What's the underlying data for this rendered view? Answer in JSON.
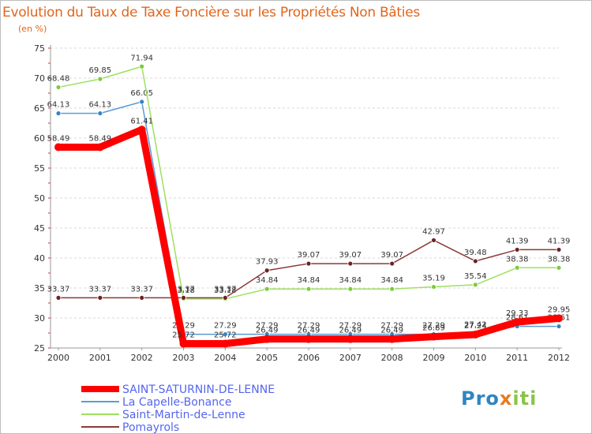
{
  "chart_data": {
    "type": "line",
    "title": "Evolution du Taux de Taxe Foncière sur les Propriétés Non Bâties",
    "ylabel": "(en %)",
    "xlabel": "",
    "ylim": [
      25,
      75
    ],
    "yticks": [
      25,
      30,
      35,
      40,
      45,
      50,
      55,
      60,
      65,
      70,
      75
    ],
    "categories": [
      "2000",
      "2001",
      "2002",
      "2003",
      "2004",
      "2005",
      "2006",
      "2007",
      "2008",
      "2009",
      "2010",
      "2011",
      "2012"
    ],
    "series": [
      {
        "name": "SAINT-SATURNIN-DE-LENNE",
        "color": "#ff0000",
        "marker": "#ff0000",
        "bold": true,
        "values": [
          58.49,
          58.49,
          61.41,
          25.72,
          25.72,
          26.49,
          26.49,
          26.49,
          26.49,
          26.89,
          27.24,
          29.33,
          29.95
        ],
        "labels": [
          "58.49",
          "58.49",
          "61.41",
          "25.72",
          "25.72",
          "26.49",
          "26.49",
          "26.49",
          "26.49",
          "26.89",
          "27.24",
          "29.33",
          "29.95"
        ]
      },
      {
        "name": "La Capelle-Bonance",
        "color": "#5b9bd5",
        "marker": "#3a82c4",
        "bold": false,
        "values": [
          64.13,
          64.13,
          66.05,
          27.29,
          27.29,
          27.29,
          27.29,
          27.29,
          27.29,
          27.29,
          27.42,
          28.61,
          28.61
        ],
        "labels": [
          "64.13",
          "64.13",
          "66.05",
          "27.29",
          "27.29",
          "27.29",
          "27.29",
          "27.29",
          "27.29",
          "27.29",
          "27.42",
          "28.61",
          "28.61"
        ]
      },
      {
        "name": "Saint-Martin-de-Lenne",
        "color": "#9ee060",
        "marker": "#7ccc3c",
        "bold": false,
        "values": [
          68.48,
          69.85,
          71.94,
          33.18,
          33.18,
          34.84,
          34.84,
          34.84,
          34.84,
          35.19,
          35.54,
          38.38,
          38.38
        ],
        "labels": [
          "68.48",
          "69.85",
          "71.94",
          "33.18",
          "33.18",
          "34.84",
          "34.84",
          "34.84",
          "34.84",
          "35.19",
          "35.54",
          "38.38",
          "38.38"
        ]
      },
      {
        "name": "Pomayrols",
        "color": "#8b3a3a",
        "marker": "#6e2323",
        "bold": false,
        "values": [
          33.37,
          33.37,
          33.37,
          33.37,
          33.37,
          37.93,
          39.07,
          39.07,
          39.07,
          42.97,
          39.48,
          41.39,
          41.39
        ],
        "labels": [
          "33.37",
          "33.37",
          "33.37",
          "33.37",
          "33.37",
          "37.93",
          "39.07",
          "39.07",
          "39.07",
          "42.97",
          "39.48",
          "41.39",
          "41.39"
        ]
      }
    ],
    "legend_position": "bottom-left"
  },
  "logo": {
    "p": "Pro",
    "x": "x",
    "i": "iti"
  }
}
